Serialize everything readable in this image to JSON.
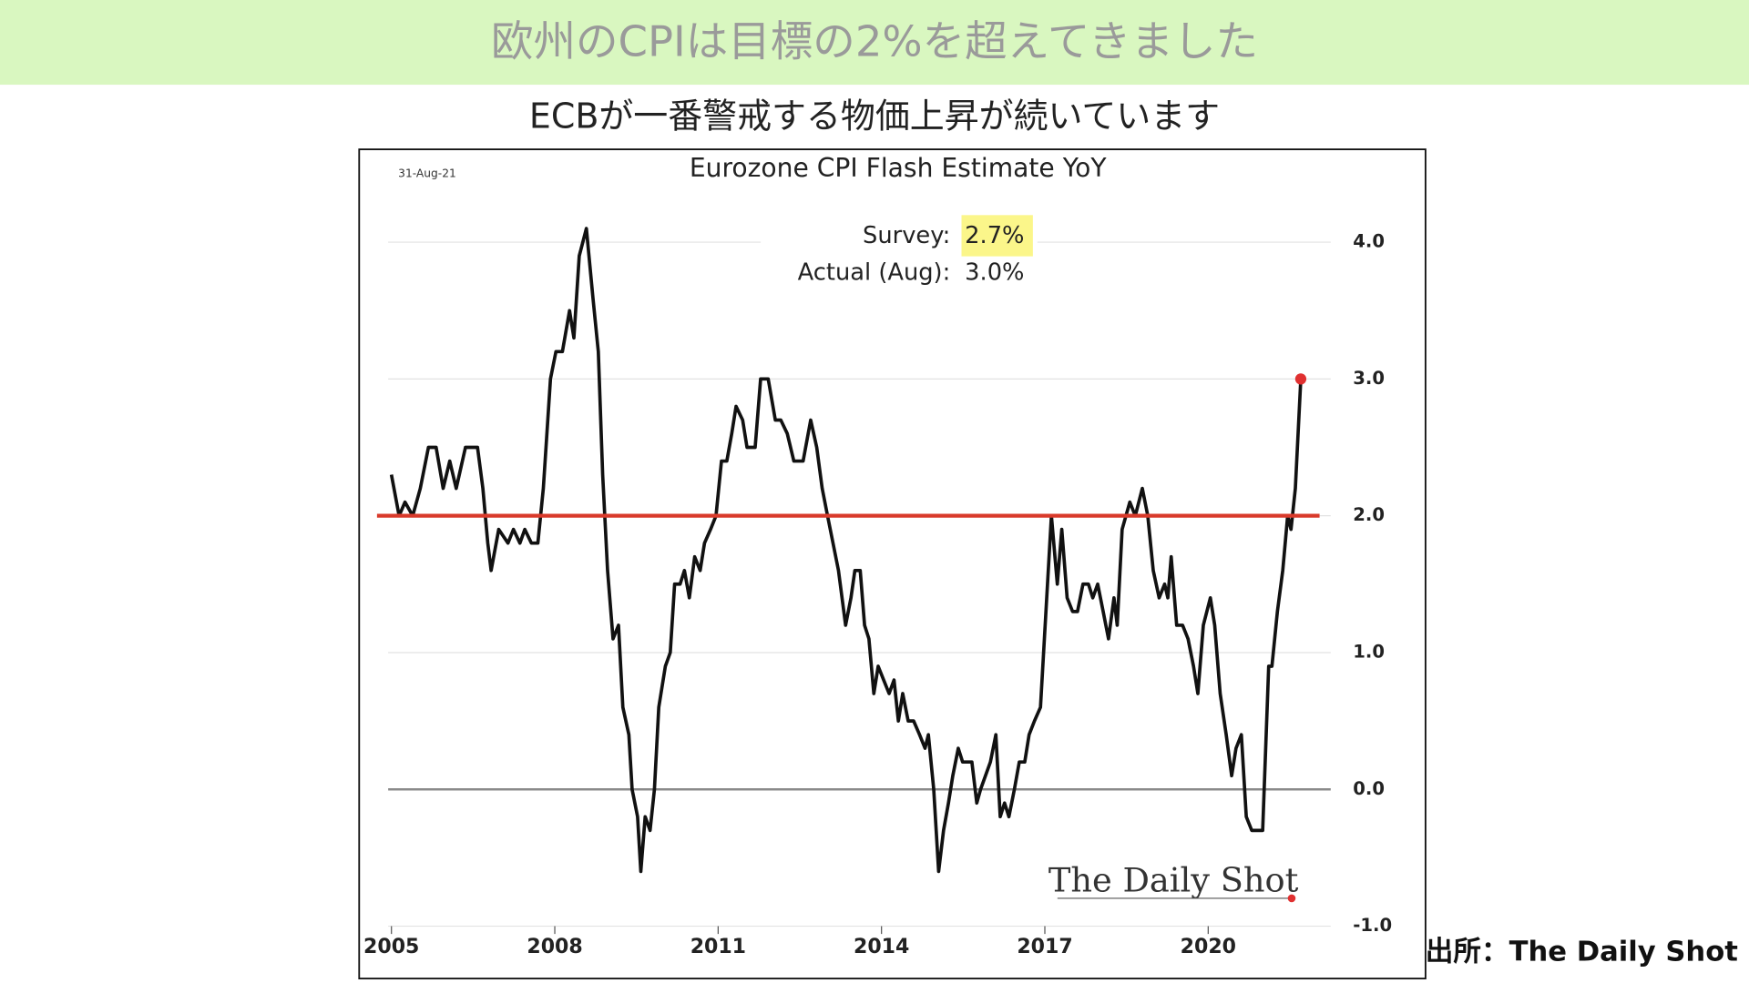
{
  "header": {
    "title": "欧州のCPIは目標の2%を超えてきました",
    "subtitle": "ECBが一番警戒する物価上昇が続いています"
  },
  "source": "出所：The Daily Shot",
  "chart_data": {
    "type": "line",
    "title": "Eurozone CPI Flash Estimate YoY",
    "date": "31-Aug-21",
    "annotations": [
      {
        "label": "Survey:",
        "value": "2.7%"
      },
      {
        "label": "Actual (Aug):",
        "value": "3.0%"
      }
    ],
    "watermark": "The Daily Shot",
    "x": [
      2005.0,
      2005.14,
      2005.25,
      2005.39,
      2005.53,
      2005.68,
      2005.82,
      2005.95,
      2006.07,
      2006.19,
      2006.36,
      2006.58,
      2006.68,
      2006.77,
      2006.83,
      2006.97,
      2007.14,
      2007.24,
      2007.36,
      2007.45,
      2007.57,
      2007.69,
      2007.79,
      2007.92,
      2008.02,
      2008.14,
      2008.27,
      2008.35,
      2008.45,
      2008.58,
      2008.7,
      2008.8,
      2008.88,
      2008.97,
      2009.07,
      2009.17,
      2009.25,
      2009.36,
      2009.42,
      2009.52,
      2009.58,
      2009.66,
      2009.75,
      2009.83,
      2009.91,
      2010.03,
      2010.12,
      2010.2,
      2010.3,
      2010.38,
      2010.47,
      2010.57,
      2010.67,
      2010.75,
      2010.86,
      2010.96,
      2011.06,
      2011.16,
      2011.25,
      2011.33,
      2011.45,
      2011.53,
      2011.68,
      2011.78,
      2011.92,
      2012.05,
      2012.15,
      2012.27,
      2012.39,
      2012.56,
      2012.7,
      2012.81,
      2012.91,
      2013.01,
      2013.11,
      2013.21,
      2013.34,
      2013.44,
      2013.51,
      2013.61,
      2013.69,
      2013.77,
      2013.86,
      2013.94,
      2014.04,
      2014.14,
      2014.23,
      2014.31,
      2014.39,
      2014.49,
      2014.59,
      2014.7,
      2014.8,
      2014.86,
      2014.96,
      2015.05,
      2015.14,
      2015.23,
      2015.31,
      2015.41,
      2015.49,
      2015.66,
      2015.75,
      2015.82,
      2015.91,
      2016.0,
      2016.1,
      2016.18,
      2016.26,
      2016.34,
      2016.44,
      2016.53,
      2016.63,
      2016.71,
      2016.81,
      2016.92,
      2017.02,
      2017.12,
      2017.23,
      2017.31,
      2017.41,
      2017.51,
      2017.6,
      2017.7,
      2017.8,
      2017.88,
      2017.97,
      2018.07,
      2018.17,
      2018.27,
      2018.33,
      2018.42,
      2018.56,
      2018.66,
      2018.79,
      2018.89,
      2018.99,
      2019.1,
      2019.2,
      2019.26,
      2019.32,
      2019.42,
      2019.53,
      2019.63,
      2019.73,
      2019.81,
      2019.91,
      2020.04,
      2020.12,
      2020.22,
      2020.33,
      2020.43,
      2020.51,
      2020.61,
      2020.7,
      2020.8,
      2021.0,
      2021.11,
      2021.17,
      2021.27,
      2021.37,
      2021.46,
      2021.52,
      2021.6,
      2021.7
    ],
    "series": [
      {
        "color": "#111111",
        "values": [
          2.3,
          2.0,
          2.1,
          2.0,
          2.2,
          2.5,
          2.5,
          2.2,
          2.4,
          2.2,
          2.5,
          2.5,
          2.2,
          1.8,
          1.6,
          1.9,
          1.8,
          1.9,
          1.8,
          1.9,
          1.8,
          1.8,
          2.2,
          3.0,
          3.2,
          3.2,
          3.5,
          3.3,
          3.9,
          4.1,
          3.6,
          3.2,
          2.3,
          1.6,
          1.1,
          1.2,
          0.6,
          0.4,
          0.0,
          -0.2,
          -0.6,
          -0.2,
          -0.3,
          0.0,
          0.6,
          0.9,
          1.0,
          1.5,
          1.5,
          1.6,
          1.4,
          1.7,
          1.6,
          1.8,
          1.9,
          2.0,
          2.4,
          2.4,
          2.6,
          2.8,
          2.7,
          2.5,
          2.5,
          3.0,
          3.0,
          2.7,
          2.7,
          2.6,
          2.4,
          2.4,
          2.7,
          2.5,
          2.2,
          2.0,
          1.8,
          1.6,
          1.2,
          1.4,
          1.6,
          1.6,
          1.2,
          1.1,
          0.7,
          0.9,
          0.8,
          0.7,
          0.8,
          0.5,
          0.7,
          0.5,
          0.5,
          0.4,
          0.3,
          0.4,
          0.0,
          -0.6,
          -0.3,
          -0.1,
          0.1,
          0.3,
          0.2,
          0.2,
          -0.1,
          0.0,
          0.1,
          0.2,
          0.4,
          -0.2,
          -0.1,
          -0.2,
          0.0,
          0.2,
          0.2,
          0.4,
          0.5,
          0.6,
          1.3,
          2.0,
          1.5,
          1.9,
          1.4,
          1.3,
          1.3,
          1.5,
          1.5,
          1.4,
          1.5,
          1.3,
          1.1,
          1.4,
          1.2,
          1.9,
          2.1,
          2.0,
          2.2,
          2.0,
          1.6,
          1.4,
          1.5,
          1.4,
          1.7,
          1.2,
          1.2,
          1.1,
          0.9,
          0.7,
          1.2,
          1.4,
          1.2,
          0.7,
          0.4,
          0.1,
          0.3,
          0.4,
          -0.2,
          -0.3,
          -0.3,
          0.9,
          0.9,
          1.3,
          1.6,
          2.0,
          1.9,
          2.2,
          3.0
        ]
      }
    ],
    "reference_line": {
      "value": 2.0,
      "color": "#d93a2b"
    },
    "last_point_color": "#e03030",
    "xlim": [
      2004.94,
      2022.25
    ],
    "xticks": [
      2005,
      2008,
      2011,
      2014,
      2017,
      2020
    ],
    "ylim": [
      -1.0,
      4.25
    ],
    "yticks": [
      {
        "value": -1,
        "label": "-1.0"
      },
      {
        "value": 0,
        "label": "0.0"
      },
      {
        "value": 1,
        "label": "1.0"
      },
      {
        "value": 2,
        "label": "2.0"
      },
      {
        "value": 3,
        "label": "3.0"
      },
      {
        "value": 4,
        "label": "4.0"
      }
    ],
    "grid": true
  }
}
